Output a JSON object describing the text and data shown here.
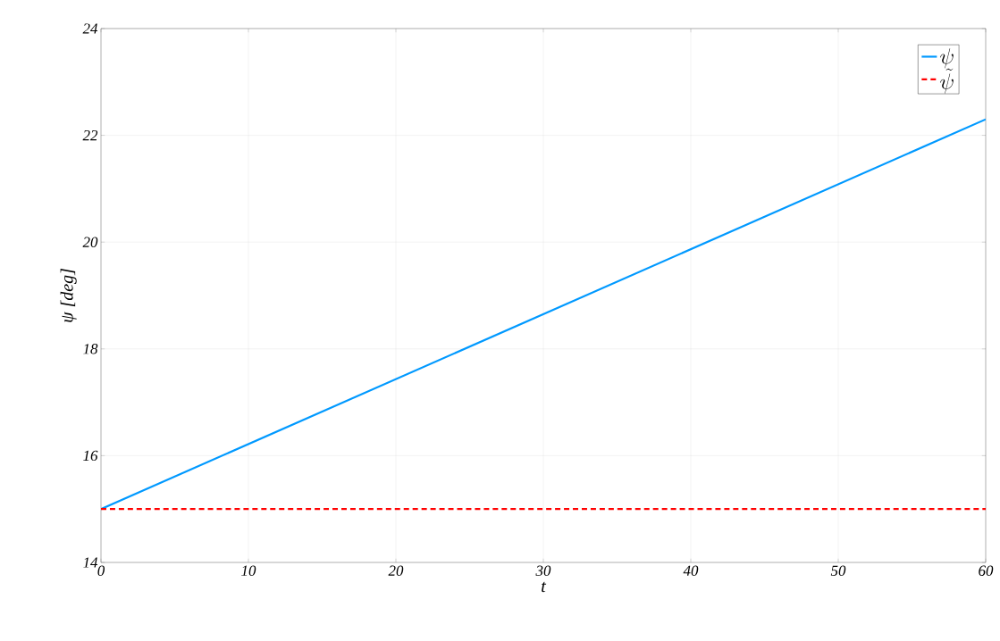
{
  "chart_data": {
    "type": "line",
    "xlabel": "t",
    "ylabel": "ψ [deg]",
    "xlim": [
      0,
      60
    ],
    "ylim": [
      14,
      24
    ],
    "xticks": [
      0,
      10,
      20,
      30,
      40,
      50,
      60
    ],
    "yticks": [
      14,
      16,
      18,
      20,
      22,
      24
    ],
    "grid": true,
    "legend": "top right",
    "x": [
      0,
      60
    ],
    "series": [
      {
        "name": "\\psi",
        "color": "#0099ff",
        "line_style": "solid",
        "values": [
          15,
          22.3
        ]
      },
      {
        "name": "\\tilde{\\psi}",
        "color": "#ff0000",
        "line_style": "dashed",
        "values": [
          15,
          15
        ]
      }
    ]
  }
}
